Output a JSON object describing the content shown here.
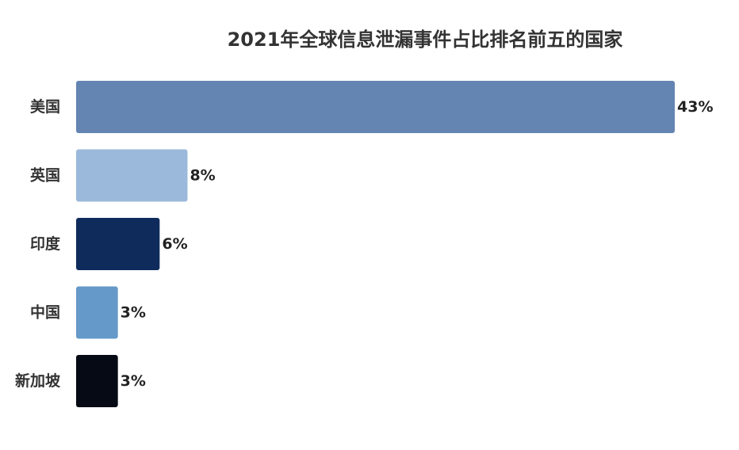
{
  "chart_data": {
    "type": "bar",
    "orientation": "horizontal",
    "title": "2021年全球信息泄漏事件占比排名前五的国家",
    "categories": [
      "美国",
      "英国",
      "印度",
      "中国",
      "新加坡"
    ],
    "values": [
      43,
      8,
      6,
      3,
      3
    ],
    "value_labels": [
      "43%",
      "8%",
      "6%",
      "3%",
      "3%"
    ],
    "unit": "%",
    "colors": [
      "#6485b2",
      "#9bb9da",
      "#0f2b5c",
      "#6599c9",
      "#050a14"
    ],
    "xlabel": "",
    "ylabel": "",
    "grid": false,
    "legend": "none"
  }
}
